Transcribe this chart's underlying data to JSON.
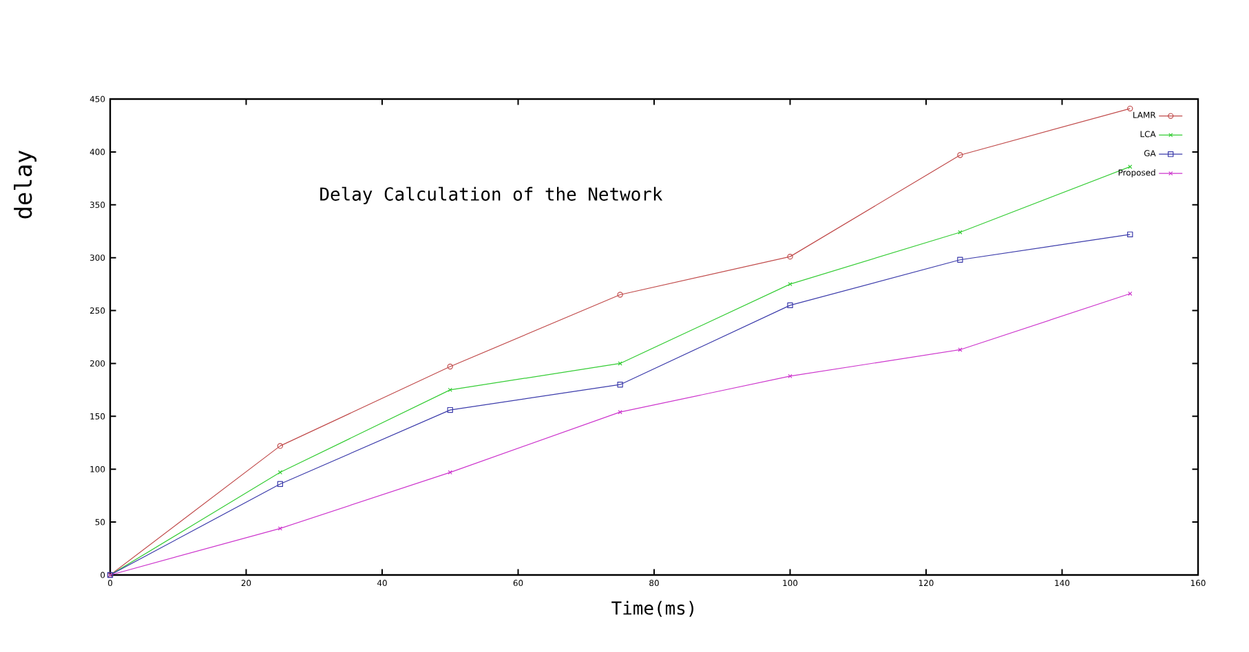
{
  "chart_data": {
    "type": "line",
    "title": "Delay Calculation of the Network",
    "xlabel": "Time(ms)",
    "ylabel": "delay",
    "x": [
      0,
      25,
      50,
      75,
      100,
      125,
      150
    ],
    "series": [
      {
        "name": "LAMR",
        "color": "#c04a4a",
        "marker": "circle",
        "values": [
          0,
          122,
          197,
          265,
          301,
          397,
          441
        ]
      },
      {
        "name": "LCA",
        "color": "#33cc33",
        "marker": "cross",
        "values": [
          0,
          97,
          175,
          200,
          275,
          324,
          386
        ]
      },
      {
        "name": "GA",
        "color": "#3a3aaa",
        "marker": "square",
        "values": [
          0,
          86,
          156,
          180,
          255,
          298,
          322
        ]
      },
      {
        "name": "Proposed",
        "color": "#cc33cc",
        "marker": "cross",
        "values": [
          0,
          44,
          97,
          154,
          188,
          213,
          266
        ]
      }
    ],
    "xlim": [
      0,
      160
    ],
    "ylim": [
      0,
      450
    ],
    "xticks": [
      0,
      20,
      40,
      60,
      80,
      100,
      120,
      140,
      160
    ],
    "yticks": [
      0,
      50,
      100,
      150,
      200,
      250,
      300,
      350,
      400,
      450
    ],
    "grid": false,
    "legend": "top right"
  }
}
